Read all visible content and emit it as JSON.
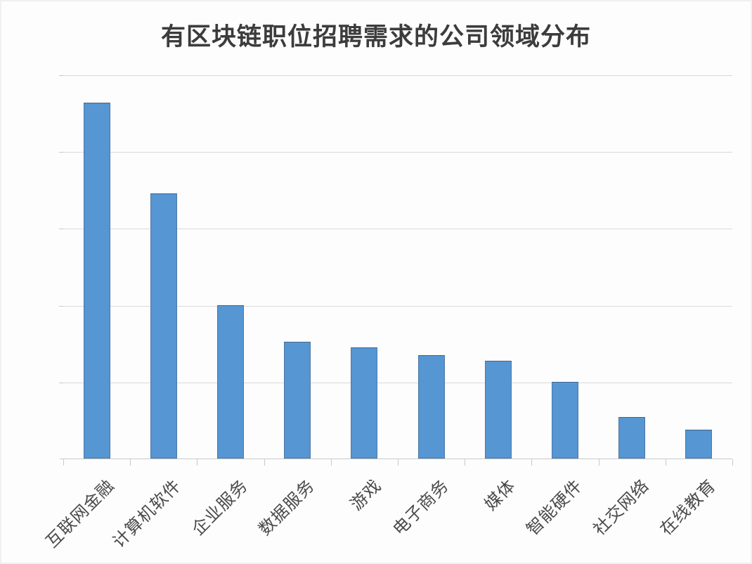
{
  "chart_data": {
    "type": "bar",
    "title": "有区块链职位招聘需求的公司领域分布",
    "categories": [
      "互联网金融",
      "计算机软件",
      "企业服务",
      "数据服务",
      "游戏",
      "电子商务",
      "媒体",
      "智能硬件",
      "社交网络",
      "在线教育"
    ],
    "values": [
      4.63,
      3.45,
      2.0,
      1.52,
      1.45,
      1.35,
      1.27,
      1.0,
      0.54,
      0.38
    ],
    "xlabel": "",
    "ylabel": "",
    "ylim": [
      0,
      5
    ],
    "y_tick_labels_visible": false,
    "grid": true,
    "gridline_interval": 1,
    "legend": "none",
    "bar_color": "#5596d3",
    "gridline_color": "#d9d9d9",
    "title_color": "#3c3c3c",
    "label_color": "#4a4a4a",
    "x_label_rotation_deg": 45
  }
}
